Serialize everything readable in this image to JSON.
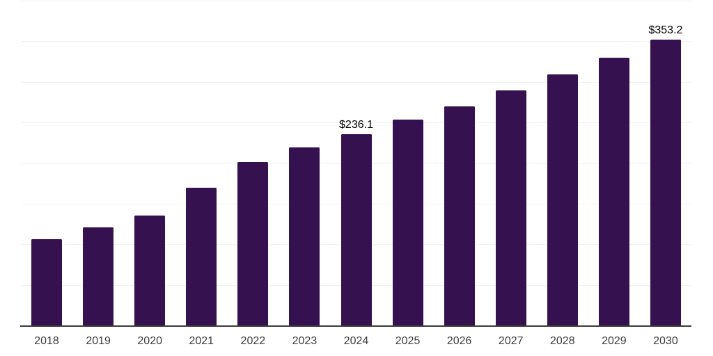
{
  "chart_data": {
    "type": "bar",
    "categories": [
      "2018",
      "2019",
      "2020",
      "2021",
      "2022",
      "2023",
      "2024",
      "2025",
      "2026",
      "2027",
      "2028",
      "2029",
      "2030"
    ],
    "values": [
      107.0,
      121.5,
      136.0,
      170.5,
      202.0,
      220.0,
      236.1,
      254.0,
      271.0,
      290.0,
      309.7,
      331.0,
      353.2
    ],
    "labeled_points": [
      {
        "category": "2024",
        "label": "$236.1"
      },
      {
        "category": "2030",
        "label": "$353.2"
      }
    ],
    "xlabel": "",
    "ylabel": "",
    "ylim": [
      0,
      400
    ],
    "grid_interval": 50,
    "grid": true,
    "legend": false,
    "y_tick_labels_visible": false,
    "colors": {
      "bar": "#361150",
      "grid": "#f2f2f2",
      "axis": "#3c3c3c",
      "tick_label": "#3d3d3d",
      "data_label": "#000000",
      "background": "#ffffff"
    }
  }
}
